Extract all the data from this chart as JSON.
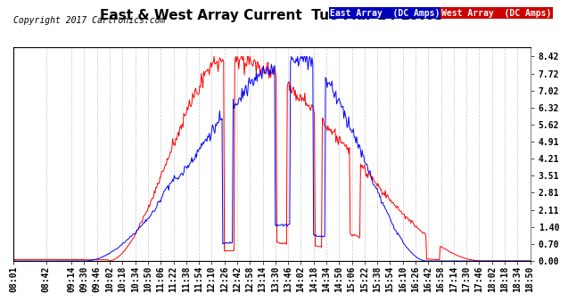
{
  "title": "East & West Array Current  Tue Mar 14 19:03",
  "copyright": "Copyright 2017 Cartronics.com",
  "legend_east": "East Array  (DC Amps)",
  "legend_west": "West Array  (DC Amps)",
  "east_color": "#0000ff",
  "west_color": "#ff0000",
  "legend_east_bg": "#0000bb",
  "legend_west_bg": "#cc0000",
  "yticks": [
    0.0,
    0.7,
    1.4,
    2.11,
    2.81,
    3.51,
    4.21,
    4.91,
    5.62,
    6.32,
    7.02,
    7.72,
    8.42
  ],
  "ylim": [
    0.0,
    8.8
  ],
  "background_color": "#ffffff",
  "grid_color": "#c8c8c8",
  "title_fontsize": 11,
  "copyright_fontsize": 7,
  "tick_fontsize": 7
}
